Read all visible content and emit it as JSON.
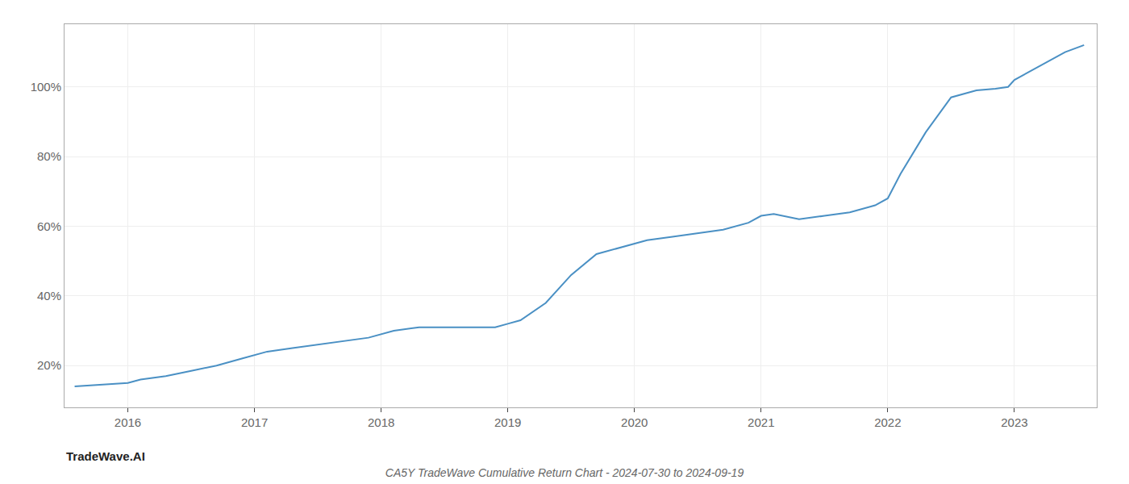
{
  "chart_data": {
    "type": "line",
    "title": "CA5Y TradeWave Cumulative Return Chart - 2024-07-30 to 2024-09-19",
    "annotations": [
      "TradeWave.AI"
    ],
    "color": "#4a90c4",
    "x": [
      2015.58,
      2016.0,
      2016.1,
      2016.3,
      2016.5,
      2016.7,
      2016.9,
      2017.1,
      2017.3,
      2017.5,
      2017.7,
      2017.9,
      2018.1,
      2018.3,
      2018.5,
      2018.7,
      2018.9,
      2019.0,
      2019.1,
      2019.3,
      2019.5,
      2019.7,
      2019.9,
      2020.1,
      2020.3,
      2020.5,
      2020.7,
      2020.9,
      2021.0,
      2021.1,
      2021.3,
      2021.5,
      2021.6,
      2021.7,
      2021.9,
      2022.0,
      2022.1,
      2022.3,
      2022.5,
      2022.7,
      2022.85,
      2022.95,
      2023.0,
      2023.2,
      2023.4,
      2023.55
    ],
    "values": [
      14,
      15,
      16,
      17,
      18.5,
      20,
      22,
      24,
      25,
      26,
      27,
      28,
      30,
      31,
      31,
      31,
      31,
      32,
      33,
      38,
      46,
      52,
      54,
      56,
      57,
      58,
      59,
      61,
      63,
      63.5,
      62,
      63,
      63.5,
      64,
      66,
      68,
      75,
      87,
      97,
      99,
      99.5,
      100,
      102,
      106,
      110,
      112
    ],
    "xlim": [
      2015.5,
      2023.65
    ],
    "ylim": [
      8,
      118
    ],
    "xticks": [
      2016,
      2017,
      2018,
      2019,
      2020,
      2021,
      2022,
      2023
    ],
    "yticks": [
      {
        "value": 20,
        "label": "20%"
      },
      {
        "value": 40,
        "label": "40%"
      },
      {
        "value": 60,
        "label": "60%"
      },
      {
        "value": 80,
        "label": "80%"
      },
      {
        "value": 100,
        "label": "100%"
      }
    ],
    "grid": true
  }
}
